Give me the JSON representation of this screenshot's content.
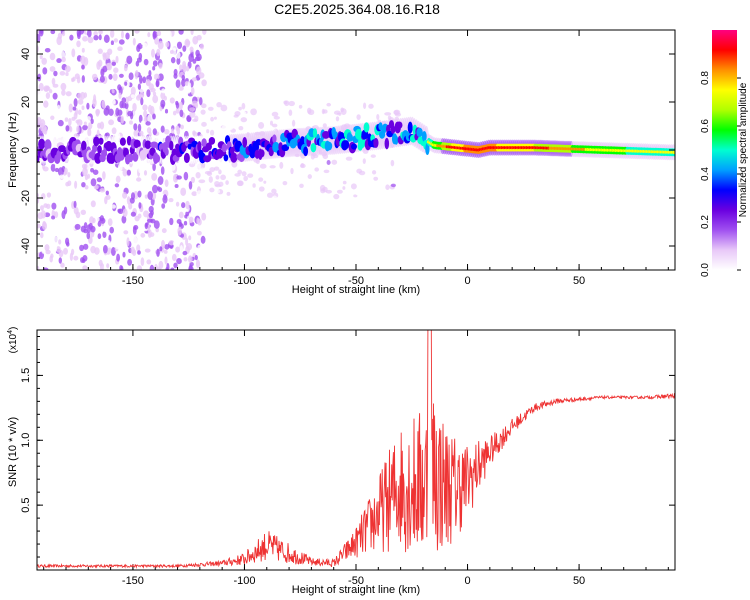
{
  "title": "C2E5.2025.364.08.16.R18",
  "chart_data": [
    {
      "type": "heatmap",
      "title": "C2E5.2025.364.08.16.R18",
      "xlabel": "Height of straight line (km)",
      "ylabel": "Frequency (Hz)",
      "xlim": [
        -193,
        93
      ],
      "ylim": [
        -50,
        50
      ],
      "x_ticks": [
        -150,
        -100,
        -50,
        0,
        50
      ],
      "y_ticks": [
        -40,
        -20,
        0,
        20,
        40
      ],
      "x_tick_labels": [
        "-150",
        "-100",
        "-50",
        "0",
        "50"
      ],
      "y_tick_labels": [
        "-40",
        "-20",
        "0",
        "20",
        "40"
      ],
      "colorbar": {
        "label": "Normalized spectral amplitude",
        "range": [
          0,
          1
        ],
        "ticks": [
          0.0,
          0.2,
          0.4,
          0.6,
          0.8
        ],
        "tick_labels": [
          "0.0",
          "0.2",
          "0.4",
          "0.6",
          "0.8"
        ],
        "colors": [
          "#ffffff",
          "#e8c8f8",
          "#a050f0",
          "#6a00e0",
          "#0000ff",
          "#00a0ff",
          "#00ffd0",
          "#00ff00",
          "#b0ff00",
          "#ffff00",
          "#ff9000",
          "#ff0000",
          "#ff0080"
        ]
      },
      "ridge": {
        "x": [
          -193,
          -150,
          -120,
          -100,
          -80,
          -60,
          -40,
          -25,
          -15,
          -5,
          5,
          10,
          30,
          60,
          93
        ],
        "center_hz": [
          0,
          0,
          0,
          1,
          3,
          4,
          6,
          8,
          2,
          1,
          0,
          1,
          1,
          0,
          -1
        ],
        "amplitude": [
          0.25,
          0.25,
          0.3,
          0.35,
          0.4,
          0.45,
          0.45,
          0.4,
          0.6,
          0.8,
          0.9,
          0.85,
          0.75,
          0.6,
          0.55
        ]
      }
    },
    {
      "type": "line",
      "xlabel": "Height of straight line (km)",
      "ylabel": "SNR (10 * v/v)",
      "y_scale_label": "(x10",
      "y_scale_exponent": "4",
      "xlim": [
        -193,
        93
      ],
      "ylim": [
        0,
        1.85
      ],
      "x_ticks": [
        -150,
        -100,
        -50,
        0,
        50
      ],
      "y_ticks": [
        0.5,
        1.0,
        1.5
      ],
      "x_tick_labels": [
        "-150",
        "-100",
        "-50",
        "0",
        "50"
      ],
      "y_tick_labels": [
        "0.5",
        "1.0",
        "1.5"
      ],
      "series": [
        {
          "name": "SNR",
          "color": "#ee3333",
          "envelope_x": [
            -193,
            -130,
            -110,
            -100,
            -90,
            -80,
            -70,
            -60,
            -50,
            -40,
            -30,
            -20,
            -15,
            -10,
            -5,
            0,
            10,
            20,
            30,
            40,
            60,
            80,
            93
          ],
          "envelope_y": [
            0.03,
            0.03,
            0.05,
            0.08,
            0.18,
            0.12,
            0.06,
            0.05,
            0.2,
            0.4,
            0.6,
            0.6,
            0.7,
            0.6,
            0.6,
            0.65,
            0.9,
            1.1,
            1.25,
            1.3,
            1.33,
            1.33,
            1.34
          ],
          "noise_amp": [
            0.01,
            0.01,
            0.02,
            0.05,
            0.12,
            0.08,
            0.03,
            0.03,
            0.12,
            0.3,
            0.5,
            0.6,
            0.7,
            0.5,
            0.4,
            0.3,
            0.12,
            0.06,
            0.03,
            0.02,
            0.01,
            0.01,
            0.02
          ]
        }
      ]
    }
  ]
}
